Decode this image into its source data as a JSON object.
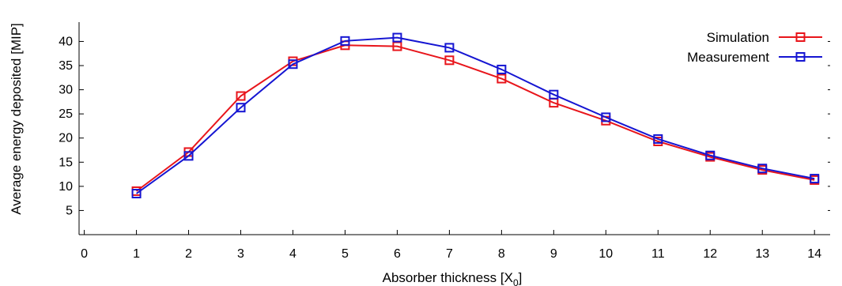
{
  "chart_data": {
    "type": "line",
    "title": "",
    "xlabel": "Absorber thickness [X",
    "xlabel_subscript": "0",
    "xlabel_suffix": "]",
    "ylabel": "Average energy deposited [MIP]",
    "xlim": [
      -0.1,
      14.3
    ],
    "ylim": [
      0,
      44
    ],
    "xticks": [
      0,
      1,
      2,
      3,
      4,
      5,
      6,
      7,
      8,
      9,
      10,
      11,
      12,
      13,
      14
    ],
    "yticks": [
      5,
      10,
      15,
      20,
      25,
      30,
      35,
      40
    ],
    "grid": false,
    "legend_position": "top-right",
    "x": [
      1,
      2,
      3,
      4,
      5,
      6,
      7,
      8,
      9,
      10,
      11,
      12,
      13,
      14
    ],
    "series": [
      {
        "name": "Simulation",
        "color": "#e8151b",
        "marker": "open-square",
        "values": [
          9.0,
          17.1,
          28.7,
          35.9,
          39.2,
          39.0,
          36.1,
          32.3,
          27.3,
          23.6,
          19.3,
          16.1,
          13.4,
          11.3
        ]
      },
      {
        "name": "Measurement",
        "color": "#1515d2",
        "marker": "open-square",
        "values": [
          8.5,
          16.3,
          26.3,
          35.3,
          40.1,
          40.8,
          38.7,
          34.2,
          29.0,
          24.3,
          19.8,
          16.4,
          13.7,
          11.6
        ]
      }
    ]
  }
}
